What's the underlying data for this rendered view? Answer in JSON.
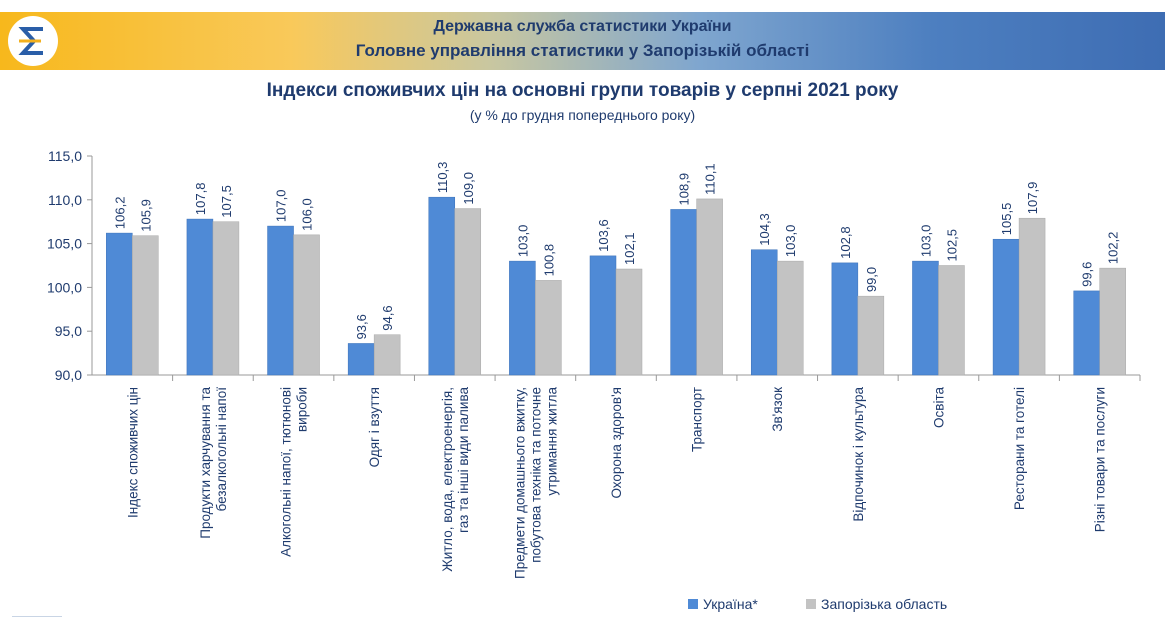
{
  "header": {
    "line1": "Державна служба статистики України",
    "line2": "Головне управління статистики у Запорізькій області"
  },
  "colors": {
    "ukraine": "#4f8ad6",
    "region": "#c3c3c3",
    "text": "#1f3b6e"
  },
  "chart_data": {
    "type": "bar",
    "title": "Індекси споживчих цін на основні групи товарів у серпні 2021 року",
    "subtitle": "(у % до грудня попереднього року)",
    "ylim": [
      90,
      115
    ],
    "yticks": [
      "90,0",
      "95,0",
      "100,0",
      "105,0",
      "110,0",
      "115,0"
    ],
    "categories": [
      "Індекс споживчих цін",
      "Продукти харчування та\nбезалкогольні напої",
      "Алкогольні напої, тютюнові\nвироби",
      "Одяг і взуття",
      "Житло, вода, електроенергія,\nгаз та інші види палива",
      "Предмети домашнього вжитку,\nпобутова техніка та поточне\nутримання житла",
      "Охорона здоров'я",
      "Транспорт",
      "Зв'язок",
      "Відпочинок і культура",
      "Освіта",
      "Ресторани та готелі",
      "Різні товари та послуги"
    ],
    "series": [
      {
        "name": "Україна*",
        "values": [
          106.2,
          107.8,
          107.0,
          93.6,
          110.3,
          103.0,
          103.6,
          108.9,
          104.3,
          102.8,
          103.0,
          105.5,
          99.6
        ]
      },
      {
        "name": "Запорізька область",
        "values": [
          105.9,
          107.5,
          106.0,
          94.6,
          109.0,
          100.8,
          102.1,
          110.1,
          103.0,
          99.0,
          102.5,
          107.9,
          102.2
        ]
      }
    ],
    "legend": "bottom-right"
  }
}
